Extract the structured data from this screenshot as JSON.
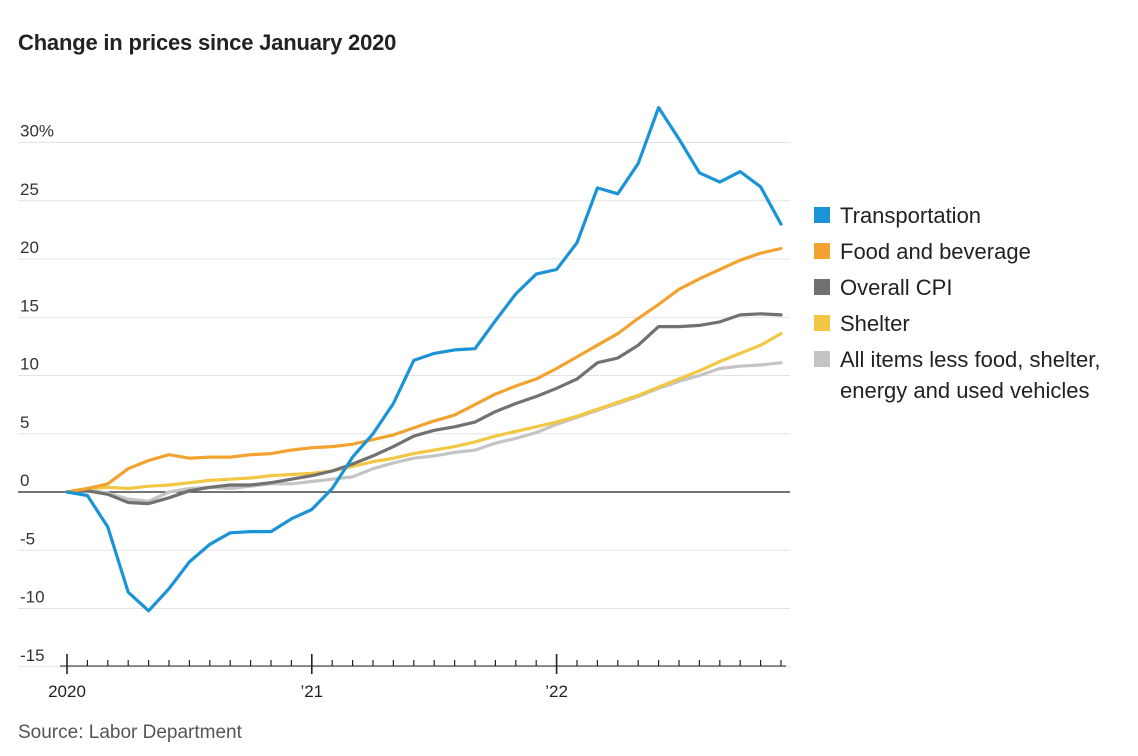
{
  "title": "Change in prices since January 2020",
  "source": "Source: Labor Department",
  "chart_data": {
    "type": "line",
    "y_unit_note": "percent change",
    "ylim": [
      -15,
      30
    ],
    "yticks": [
      30,
      25,
      20,
      15,
      10,
      5,
      0,
      -5,
      -10,
      -15
    ],
    "ytick_labels": [
      "30%",
      "25",
      "20",
      "15",
      "10",
      "5",
      "0",
      "-5",
      "-10",
      "-15"
    ],
    "xtick_labels": [
      {
        "month_index": 0,
        "label": "2020"
      },
      {
        "month_index": 12,
        "label": "’21"
      },
      {
        "month_index": 24,
        "label": "’22"
      }
    ],
    "months": [
      "Jan 2020",
      "Feb 2020",
      "Mar 2020",
      "Apr 2020",
      "May 2020",
      "Jun 2020",
      "Jul 2020",
      "Aug 2020",
      "Sep 2020",
      "Oct 2020",
      "Nov 2020",
      "Dec 2020",
      "Jan 2021",
      "Feb 2021",
      "Mar 2021",
      "Apr 2021",
      "May 2021",
      "Jun 2021",
      "Jul 2021",
      "Aug 2021",
      "Sep 2021",
      "Oct 2021",
      "Nov 2021",
      "Dec 2021",
      "Jan 2022",
      "Feb 2022",
      "Mar 2022",
      "Apr 2022",
      "May 2022",
      "Jun 2022",
      "Jul 2022",
      "Aug 2022",
      "Sep 2022",
      "Oct 2022",
      "Nov 2022",
      "Dec 2022"
    ],
    "legend_position": "right",
    "grid": true,
    "series": [
      {
        "name": "All items less food, shelter, energy and used vehicles",
        "color": "#c4c4c4",
        "values": [
          0,
          0.2,
          -0.1,
          -0.6,
          -0.8,
          0.0,
          0.3,
          0.4,
          0.3,
          0.5,
          0.7,
          0.7,
          0.9,
          1.1,
          1.3,
          2.0,
          2.5,
          2.9,
          3.1,
          3.4,
          3.6,
          4.2,
          4.6,
          5.1,
          5.8,
          6.4,
          7.0,
          7.6,
          8.2,
          8.9,
          9.5,
          10.0,
          10.6,
          10.8,
          10.9,
          11.1
        ]
      },
      {
        "name": "Shelter",
        "color": "#f2c744",
        "values": [
          0,
          0.3,
          0.4,
          0.3,
          0.5,
          0.6,
          0.8,
          1.0,
          1.1,
          1.2,
          1.4,
          1.5,
          1.6,
          1.8,
          2.2,
          2.6,
          2.9,
          3.3,
          3.6,
          3.9,
          4.3,
          4.8,
          5.2,
          5.6,
          6.0,
          6.5,
          7.1,
          7.7,
          8.3,
          9.0,
          9.7,
          10.4,
          11.2,
          11.9,
          12.6,
          13.6
        ]
      },
      {
        "name": "Overall CPI",
        "color": "#717171",
        "values": [
          0,
          0.1,
          -0.2,
          -0.9,
          -1.0,
          -0.5,
          0.1,
          0.4,
          0.6,
          0.6,
          0.8,
          1.1,
          1.4,
          1.8,
          2.4,
          3.1,
          3.9,
          4.8,
          5.3,
          5.6,
          6.0,
          6.9,
          7.6,
          8.2,
          8.9,
          9.7,
          11.1,
          11.5,
          12.6,
          14.2,
          14.2,
          14.3,
          14.6,
          15.2,
          15.3,
          15.2
        ]
      },
      {
        "name": "Food and beverage",
        "color": "#f2a32f",
        "values": [
          0,
          0.3,
          0.7,
          2.0,
          2.7,
          3.2,
          2.9,
          3.0,
          3.0,
          3.2,
          3.3,
          3.6,
          3.8,
          3.9,
          4.1,
          4.5,
          4.9,
          5.5,
          6.1,
          6.6,
          7.5,
          8.4,
          9.1,
          9.7,
          10.6,
          11.6,
          12.6,
          13.6,
          14.9,
          16.1,
          17.4,
          18.3,
          19.1,
          19.9,
          20.5,
          20.9
        ]
      },
      {
        "name": "Transportation",
        "color": "#1a94d6",
        "values": [
          0,
          -0.3,
          -3.0,
          -8.6,
          -10.2,
          -8.3,
          -6.0,
          -4.5,
          -3.5,
          -3.4,
          -3.4,
          -2.3,
          -1.5,
          0.3,
          3.0,
          5.0,
          7.6,
          11.3,
          11.9,
          12.2,
          12.3,
          14.7,
          17.0,
          18.7,
          19.1,
          21.4,
          26.1,
          25.6,
          28.2,
          33.0,
          30.3,
          27.4,
          26.6,
          27.5,
          26.2,
          23.0
        ]
      }
    ]
  },
  "legend": [
    {
      "label": "Transportation",
      "color": "#1a94d6"
    },
    {
      "label": "Food and beverage",
      "color": "#f2a32f"
    },
    {
      "label": "Overall CPI",
      "color": "#717171"
    },
    {
      "label": "Shelter",
      "color": "#f2c744"
    },
    {
      "label": "All items less food, shelter, energy and used vehicles",
      "color": "#c4c4c4"
    }
  ]
}
